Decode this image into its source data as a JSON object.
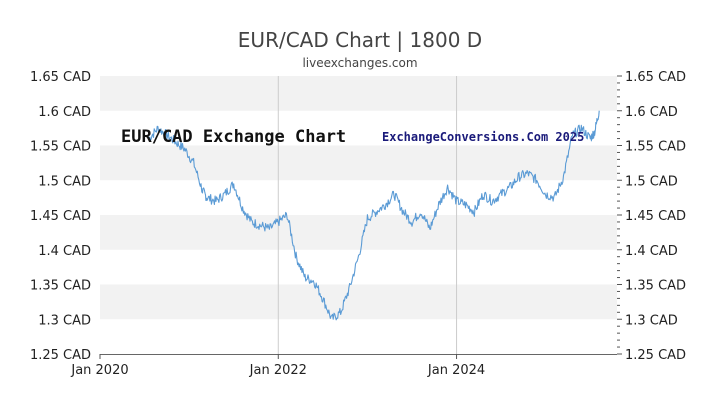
{
  "chart_data": {
    "type": "line",
    "title": "EUR/CAD Chart | 1800 D",
    "subtitle": "liveexchanges.com",
    "xlabel": "",
    "ylabel": "",
    "watermarks": [
      "EUR/CAD Exchange Chart",
      "ExchangeConversions.Com 2025"
    ],
    "x_ticks": [
      "Jan 2020",
      "Jan 2022",
      "Jan 2024"
    ],
    "x_tick_years": [
      2020,
      2022,
      2024
    ],
    "xlim": [
      2020.0,
      2025.8
    ],
    "y_ticks": [
      "1.25 CAD",
      "1.3 CAD",
      "1.35 CAD",
      "1.4 CAD",
      "1.45 CAD",
      "1.5 CAD",
      "1.55 CAD",
      "1.6 CAD",
      "1.65 CAD"
    ],
    "y_tick_values": [
      1.25,
      1.3,
      1.35,
      1.4,
      1.45,
      1.5,
      1.55,
      1.6,
      1.65
    ],
    "ylim": [
      1.25,
      1.65
    ],
    "grid": "alternating horizontal bands, vertical lines at year ticks",
    "line_color": "#5b9bd5",
    "series": [
      {
        "x": [
          2020.55,
          2020.65,
          2020.75,
          2020.85,
          2020.95,
          2021.05,
          2021.15,
          2021.2,
          2021.3,
          2021.4,
          2021.5,
          2021.6,
          2021.7,
          2021.8,
          2021.9,
          2022.0,
          2022.1,
          2022.2,
          2022.3,
          2022.4,
          2022.5,
          2022.6,
          2022.7,
          2022.8,
          2022.9,
          2023.0,
          2023.1,
          2023.2,
          2023.3,
          2023.4,
          2023.5,
          2023.6,
          2023.7,
          2023.8,
          2023.9,
          2024.0,
          2024.1,
          2024.2,
          2024.3,
          2024.4,
          2024.5,
          2024.6,
          2024.7,
          2024.8,
          2024.9,
          2025.0,
          2025.1,
          2025.2,
          2025.3,
          2025.4,
          2025.5,
          2025.55,
          2025.6
        ],
        "values": [
          1.56,
          1.575,
          1.565,
          1.555,
          1.545,
          1.525,
          1.485,
          1.475,
          1.47,
          1.48,
          1.495,
          1.46,
          1.44,
          1.435,
          1.43,
          1.44,
          1.45,
          1.39,
          1.36,
          1.355,
          1.33,
          1.3,
          1.31,
          1.345,
          1.39,
          1.445,
          1.455,
          1.465,
          1.48,
          1.455,
          1.44,
          1.455,
          1.43,
          1.465,
          1.49,
          1.47,
          1.465,
          1.455,
          1.48,
          1.47,
          1.48,
          1.49,
          1.505,
          1.51,
          1.5,
          1.48,
          1.475,
          1.505,
          1.565,
          1.575,
          1.56,
          1.57,
          1.6
        ]
      }
    ]
  }
}
